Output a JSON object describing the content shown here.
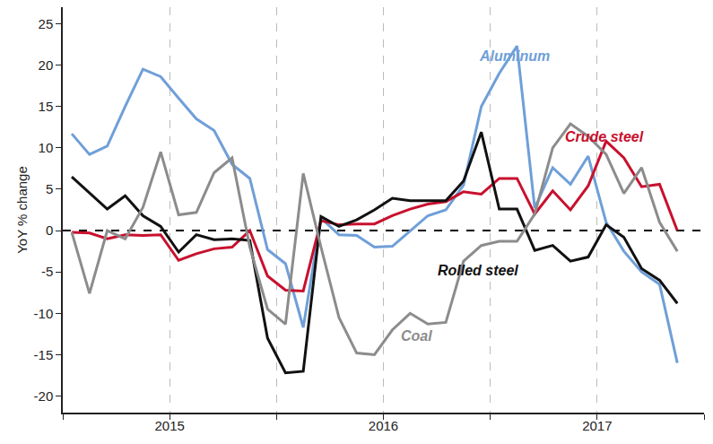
{
  "chart_data": {
    "type": "line",
    "y_label": "YoY % change",
    "x": [
      2015.042,
      2015.125,
      2015.208,
      2015.292,
      2015.375,
      2015.458,
      2015.542,
      2015.625,
      2015.708,
      2015.792,
      2015.875,
      2015.958,
      2016.042,
      2016.125,
      2016.208,
      2016.292,
      2016.375,
      2016.458,
      2016.542,
      2016.625,
      2016.708,
      2016.792,
      2016.875,
      2016.958,
      2017.042,
      2017.125,
      2017.208,
      2017.292,
      2017.375,
      2017.458,
      2017.542,
      2017.625,
      2017.708,
      2017.792,
      2017.875
    ],
    "series": [
      {
        "name": "Aluminum",
        "color": "#6f9fd8",
        "values": [
          11.7,
          9.2,
          10.2,
          15,
          19.5,
          18.6,
          16,
          13.5,
          12.1,
          8,
          6.3,
          -2.3,
          -4,
          -11.7,
          1.5,
          -0.5,
          -0.6,
          -2,
          -1.9,
          -0.1,
          1.8,
          2.5,
          5.5,
          15,
          19,
          22.3,
          2.7,
          7.6,
          5.6,
          9,
          1,
          -2.5,
          -5,
          -6.5,
          -16
        ]
      },
      {
        "name": "Crude steel",
        "color": "#c8102e",
        "values": [
          -0.2,
          -0.3,
          -1,
          -0.5,
          -0.6,
          -0.5,
          -3.6,
          -2.8,
          -2.2,
          -2,
          0,
          -5.5,
          -7.2,
          -7.3,
          1.2,
          0.7,
          0.8,
          0.8,
          1.8,
          2.6,
          3.2,
          3.5,
          4.7,
          4.4,
          6.3,
          6.3,
          2,
          4.8,
          2.5,
          5.4,
          10.8,
          8.8,
          5.3,
          5.6,
          0
        ]
      },
      {
        "name": "Rolled steel",
        "color": "#111111",
        "values": [
          6.5,
          4.5,
          2.6,
          4.2,
          1.8,
          0.5,
          -2.6,
          -0.5,
          -1.1,
          -1,
          -1.2,
          -13,
          -17.2,
          -17,
          1.7,
          0.5,
          1.3,
          2.5,
          3.9,
          3.6,
          3.6,
          3.6,
          6,
          11.9,
          2.6,
          2.6,
          -2.4,
          -1.8,
          -3.7,
          -3.2,
          0.7,
          -0.8,
          -4.6,
          -6,
          -8.8
        ]
      },
      {
        "name": "Coal",
        "color": "#8c8c8c",
        "values": [
          -0.2,
          -7.6,
          0,
          -1,
          2.8,
          9.5,
          1.9,
          2.2,
          7,
          8.8,
          -2,
          -9.5,
          -11.3,
          6.9,
          -2,
          -10.5,
          -14.8,
          -15,
          -12,
          -10,
          -11.3,
          -11.1,
          -3.7,
          -1.8,
          -1.3,
          -1.3,
          2,
          10,
          12.9,
          11.4,
          9.2,
          4.5,
          7.6,
          1,
          -2.5
        ]
      }
    ],
    "xlim": [
      2015,
      2018
    ],
    "xticks": [
      {
        "value": 2015.5,
        "label": "2015"
      },
      {
        "value": 2016.5,
        "label": "2016"
      },
      {
        "value": 2017.5,
        "label": "2017"
      }
    ],
    "ylim": [
      -22,
      27
    ],
    "yticks": [
      -20,
      -15,
      -10,
      -5,
      0,
      5,
      10,
      15,
      20,
      25
    ],
    "grid": true
  }
}
